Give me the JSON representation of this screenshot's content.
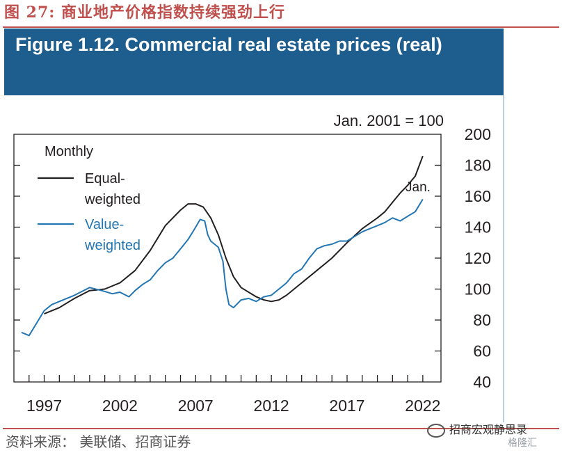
{
  "page": {
    "title": "图 27:  商业地产价格指数持续强劲上行",
    "source": "资料来源： 美联储、招商证券",
    "watermark": "招商宏观静思录",
    "watermark2": "格隆汇"
  },
  "figure": {
    "title": "Figure 1.12. Commercial real estate prices (real)"
  },
  "chart_data": {
    "type": "line",
    "unit_note": "Jan. 2001 = 100",
    "frequency_label": "Monthly",
    "end_annotation": "Jan.",
    "xlim": [
      1995.0,
      2023.2
    ],
    "ylim": [
      40,
      200
    ],
    "x_ticks": [
      1997,
      2002,
      2007,
      2012,
      2017,
      2022
    ],
    "y_ticks": [
      40,
      60,
      80,
      100,
      120,
      140,
      160,
      180,
      200
    ],
    "legend": {
      "placement": "top-left"
    },
    "grid": false,
    "series": [
      {
        "name": "Equal-weighted",
        "legend_label": [
          "Equal-",
          "weighted"
        ],
        "color": "#231f20",
        "points": [
          [
            1997.0,
            84
          ],
          [
            1998.0,
            88
          ],
          [
            1999.0,
            94
          ],
          [
            2000.0,
            99
          ],
          [
            2001.0,
            100
          ],
          [
            2002.0,
            104
          ],
          [
            2003.0,
            112
          ],
          [
            2004.0,
            125
          ],
          [
            2005.0,
            141
          ],
          [
            2006.0,
            151
          ],
          [
            2006.5,
            155
          ],
          [
            2007.0,
            155
          ],
          [
            2007.5,
            153
          ],
          [
            2008.0,
            146
          ],
          [
            2008.5,
            135
          ],
          [
            2009.0,
            120
          ],
          [
            2009.5,
            108
          ],
          [
            2010.0,
            101
          ],
          [
            2010.5,
            98
          ],
          [
            2011.0,
            95
          ],
          [
            2011.5,
            93
          ],
          [
            2012.0,
            92
          ],
          [
            2012.5,
            93
          ],
          [
            2013.0,
            96
          ],
          [
            2014.0,
            104
          ],
          [
            2015.0,
            112
          ],
          [
            2016.0,
            120
          ],
          [
            2017.0,
            130
          ],
          [
            2018.0,
            139
          ],
          [
            2019.0,
            146
          ],
          [
            2019.5,
            150
          ],
          [
            2020.0,
            156
          ],
          [
            2020.5,
            162
          ],
          [
            2021.0,
            167
          ],
          [
            2021.5,
            173
          ],
          [
            2022.0,
            186
          ]
        ]
      },
      {
        "name": "Value-weighted",
        "legend_label": [
          "Value-",
          "weighted"
        ],
        "color": "#2276b3",
        "points": [
          [
            1995.5,
            72
          ],
          [
            1996.0,
            70
          ],
          [
            1996.5,
            78
          ],
          [
            1997.0,
            86
          ],
          [
            1997.5,
            90
          ],
          [
            1998.0,
            92
          ],
          [
            1999.0,
            96
          ],
          [
            2000.0,
            101
          ],
          [
            2000.8,
            99
          ],
          [
            2001.5,
            97
          ],
          [
            2002.0,
            98
          ],
          [
            2002.6,
            95
          ],
          [
            2003.0,
            99
          ],
          [
            2003.5,
            103
          ],
          [
            2004.0,
            106
          ],
          [
            2004.5,
            112
          ],
          [
            2005.0,
            117
          ],
          [
            2005.5,
            120
          ],
          [
            2006.0,
            126
          ],
          [
            2006.5,
            132
          ],
          [
            2007.0,
            140
          ],
          [
            2007.3,
            145
          ],
          [
            2007.6,
            144
          ],
          [
            2007.8,
            135
          ],
          [
            2008.0,
            131
          ],
          [
            2008.5,
            127
          ],
          [
            2008.8,
            118
          ],
          [
            2009.0,
            100
          ],
          [
            2009.2,
            90
          ],
          [
            2009.5,
            88
          ],
          [
            2010.0,
            93
          ],
          [
            2010.5,
            94
          ],
          [
            2011.0,
            92
          ],
          [
            2011.5,
            95
          ],
          [
            2012.0,
            96
          ],
          [
            2012.5,
            100
          ],
          [
            2013.0,
            104
          ],
          [
            2013.5,
            110
          ],
          [
            2014.0,
            113
          ],
          [
            2014.5,
            120
          ],
          [
            2015.0,
            126
          ],
          [
            2015.5,
            128
          ],
          [
            2016.0,
            129
          ],
          [
            2016.5,
            131
          ],
          [
            2017.0,
            131
          ],
          [
            2017.5,
            134
          ],
          [
            2018.0,
            137
          ],
          [
            2018.5,
            139
          ],
          [
            2019.0,
            141
          ],
          [
            2019.5,
            143
          ],
          [
            2020.0,
            146
          ],
          [
            2020.5,
            144
          ],
          [
            2021.0,
            147
          ],
          [
            2021.5,
            150
          ],
          [
            2022.0,
            158
          ]
        ]
      }
    ]
  }
}
